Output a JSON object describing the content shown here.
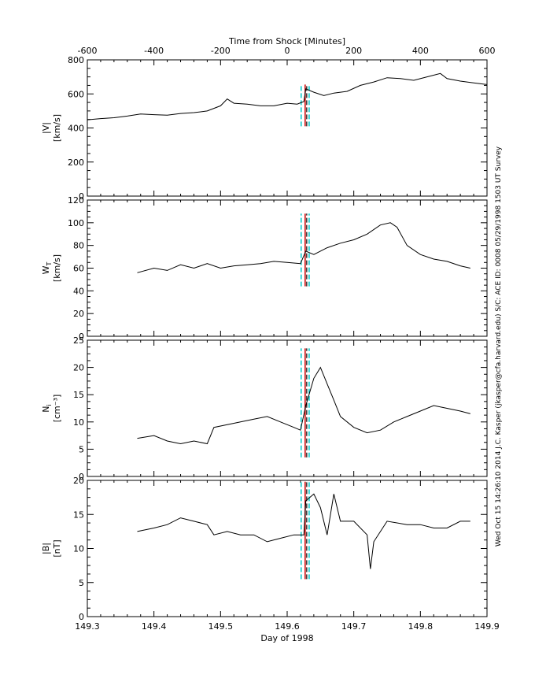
{
  "chart_data": {
    "type": "line",
    "top_axis": {
      "label": "Time from Shock [Minutes]",
      "range": [
        -600,
        600
      ],
      "ticks": [
        "-600",
        "-400",
        "-200",
        "0",
        "200",
        "400",
        "600"
      ]
    },
    "bottom_axis": {
      "label": "Day of 1998",
      "range": [
        149.3,
        149.9
      ],
      "ticks": [
        "149.3",
        "149.4",
        "149.5",
        "149.6",
        "149.7",
        "149.8",
        "149.9"
      ]
    },
    "side_annotation": "Wed Oct 15 14:26:10 2014   J.C. Kasper (jkasper@cfa.harvard.edu)   S/C: ACE ID: 0008 05/29/1998   1503 UT Survey",
    "markers": {
      "shock_time": 149.627,
      "dashed_window": [
        149.621,
        149.633
      ],
      "colors": {
        "shock": "#cc0000",
        "dashed": "#00c8c8",
        "trace": "#000000"
      }
    },
    "panels": [
      {
        "ylabel_top": "|V|",
        "ylabel_bottom": "[km/s]",
        "ylim": [
          0,
          800
        ],
        "yticks": [
          "0",
          "200",
          "400",
          "600",
          "800"
        ],
        "marker_yrange": [
          410,
          655
        ],
        "series": [
          {
            "x": 149.3,
            "y": 448
          },
          {
            "x": 149.32,
            "y": 455
          },
          {
            "x": 149.34,
            "y": 460
          },
          {
            "x": 149.36,
            "y": 470
          },
          {
            "x": 149.38,
            "y": 482
          },
          {
            "x": 149.4,
            "y": 478
          },
          {
            "x": 149.42,
            "y": 475
          },
          {
            "x": 149.44,
            "y": 485
          },
          {
            "x": 149.46,
            "y": 490
          },
          {
            "x": 149.48,
            "y": 500
          },
          {
            "x": 149.5,
            "y": 530
          },
          {
            "x": 149.51,
            "y": 570
          },
          {
            "x": 149.52,
            "y": 545
          },
          {
            "x": 149.54,
            "y": 540
          },
          {
            "x": 149.56,
            "y": 530
          },
          {
            "x": 149.58,
            "y": 530
          },
          {
            "x": 149.6,
            "y": 545
          },
          {
            "x": 149.615,
            "y": 540
          },
          {
            "x": 149.625,
            "y": 555
          },
          {
            "x": 149.628,
            "y": 630
          },
          {
            "x": 149.64,
            "y": 610
          },
          {
            "x": 149.655,
            "y": 590
          },
          {
            "x": 149.67,
            "y": 605
          },
          {
            "x": 149.69,
            "y": 615
          },
          {
            "x": 149.71,
            "y": 650
          },
          {
            "x": 149.73,
            "y": 670
          },
          {
            "x": 149.75,
            "y": 695
          },
          {
            "x": 149.77,
            "y": 690
          },
          {
            "x": 149.79,
            "y": 680
          },
          {
            "x": 149.81,
            "y": 700
          },
          {
            "x": 149.83,
            "y": 720
          },
          {
            "x": 149.84,
            "y": 690
          },
          {
            "x": 149.86,
            "y": 675
          },
          {
            "x": 149.88,
            "y": 665
          },
          {
            "x": 149.9,
            "y": 655
          }
        ]
      },
      {
        "ylabel_top": "W",
        "ylabel_sub": "T",
        "ylabel_bottom": "[km/s]",
        "ylim": [
          0,
          120
        ],
        "yticks": [
          "0",
          "20",
          "40",
          "60",
          "80",
          "100",
          "120"
        ],
        "marker_yrange": [
          44,
          108
        ],
        "series": [
          {
            "x": 149.375,
            "y": 56
          },
          {
            "x": 149.4,
            "y": 60
          },
          {
            "x": 149.42,
            "y": 58
          },
          {
            "x": 149.44,
            "y": 63
          },
          {
            "x": 149.46,
            "y": 60
          },
          {
            "x": 149.48,
            "y": 64
          },
          {
            "x": 149.5,
            "y": 60
          },
          {
            "x": 149.52,
            "y": 62
          },
          {
            "x": 149.54,
            "y": 63
          },
          {
            "x": 149.56,
            "y": 64
          },
          {
            "x": 149.58,
            "y": 66
          },
          {
            "x": 149.6,
            "y": 65
          },
          {
            "x": 149.62,
            "y": 64
          },
          {
            "x": 149.628,
            "y": 75
          },
          {
            "x": 149.64,
            "y": 72
          },
          {
            "x": 149.66,
            "y": 78
          },
          {
            "x": 149.68,
            "y": 82
          },
          {
            "x": 149.7,
            "y": 85
          },
          {
            "x": 149.72,
            "y": 90
          },
          {
            "x": 149.74,
            "y": 98
          },
          {
            "x": 149.755,
            "y": 100
          },
          {
            "x": 149.765,
            "y": 96
          },
          {
            "x": 149.78,
            "y": 80
          },
          {
            "x": 149.8,
            "y": 72
          },
          {
            "x": 149.82,
            "y": 68
          },
          {
            "x": 149.84,
            "y": 66
          },
          {
            "x": 149.86,
            "y": 62
          },
          {
            "x": 149.875,
            "y": 60
          }
        ]
      },
      {
        "ylabel_top": "N",
        "ylabel_sub": "i",
        "ylabel_bottom": "[cm⁻³]",
        "ylim": [
          0,
          25
        ],
        "yticks": [
          "0",
          "5",
          "10",
          "15",
          "20",
          "25"
        ],
        "marker_yrange": [
          3.5,
          23.5
        ],
        "series": [
          {
            "x": 149.375,
            "y": 7
          },
          {
            "x": 149.4,
            "y": 7.5
          },
          {
            "x": 149.42,
            "y": 6.5
          },
          {
            "x": 149.44,
            "y": 6
          },
          {
            "x": 149.46,
            "y": 6.5
          },
          {
            "x": 149.48,
            "y": 6
          },
          {
            "x": 149.49,
            "y": 9
          },
          {
            "x": 149.51,
            "y": 9.5
          },
          {
            "x": 149.53,
            "y": 10
          },
          {
            "x": 149.55,
            "y": 10.5
          },
          {
            "x": 149.57,
            "y": 11
          },
          {
            "x": 149.59,
            "y": 10
          },
          {
            "x": 149.61,
            "y": 9
          },
          {
            "x": 149.62,
            "y": 8.5
          },
          {
            "x": 149.628,
            "y": 13
          },
          {
            "x": 149.64,
            "y": 18
          },
          {
            "x": 149.65,
            "y": 20
          },
          {
            "x": 149.66,
            "y": 17
          },
          {
            "x": 149.67,
            "y": 14
          },
          {
            "x": 149.68,
            "y": 11
          },
          {
            "x": 149.7,
            "y": 9
          },
          {
            "x": 149.72,
            "y": 8
          },
          {
            "x": 149.74,
            "y": 8.5
          },
          {
            "x": 149.76,
            "y": 10
          },
          {
            "x": 149.78,
            "y": 11
          },
          {
            "x": 149.8,
            "y": 12
          },
          {
            "x": 149.82,
            "y": 13
          },
          {
            "x": 149.84,
            "y": 12.5
          },
          {
            "x": 149.86,
            "y": 12
          },
          {
            "x": 149.875,
            "y": 11.5
          }
        ]
      },
      {
        "ylabel_top": "|B|",
        "ylabel_bottom": "[nT]",
        "ylim": [
          0,
          20
        ],
        "yticks": [
          "0",
          "5",
          "10",
          "15",
          "20"
        ],
        "marker_yrange": [
          5.5,
          19.8
        ],
        "series": [
          {
            "x": 149.375,
            "y": 12.5
          },
          {
            "x": 149.4,
            "y": 13
          },
          {
            "x": 149.42,
            "y": 13.5
          },
          {
            "x": 149.44,
            "y": 14.5
          },
          {
            "x": 149.46,
            "y": 14
          },
          {
            "x": 149.48,
            "y": 13.5
          },
          {
            "x": 149.49,
            "y": 12
          },
          {
            "x": 149.51,
            "y": 12.5
          },
          {
            "x": 149.53,
            "y": 12
          },
          {
            "x": 149.55,
            "y": 12
          },
          {
            "x": 149.57,
            "y": 11
          },
          {
            "x": 149.59,
            "y": 11.5
          },
          {
            "x": 149.61,
            "y": 12
          },
          {
            "x": 149.625,
            "y": 12
          },
          {
            "x": 149.628,
            "y": 17
          },
          {
            "x": 149.64,
            "y": 18
          },
          {
            "x": 149.65,
            "y": 16
          },
          {
            "x": 149.66,
            "y": 12
          },
          {
            "x": 149.67,
            "y": 18
          },
          {
            "x": 149.68,
            "y": 14
          },
          {
            "x": 149.7,
            "y": 14
          },
          {
            "x": 149.72,
            "y": 12
          },
          {
            "x": 149.725,
            "y": 7
          },
          {
            "x": 149.73,
            "y": 11
          },
          {
            "x": 149.75,
            "y": 14
          },
          {
            "x": 149.78,
            "y": 13.5
          },
          {
            "x": 149.8,
            "y": 13.5
          },
          {
            "x": 149.82,
            "y": 13
          },
          {
            "x": 149.84,
            "y": 13
          },
          {
            "x": 149.86,
            "y": 14
          },
          {
            "x": 149.875,
            "y": 14
          }
        ]
      }
    ]
  }
}
